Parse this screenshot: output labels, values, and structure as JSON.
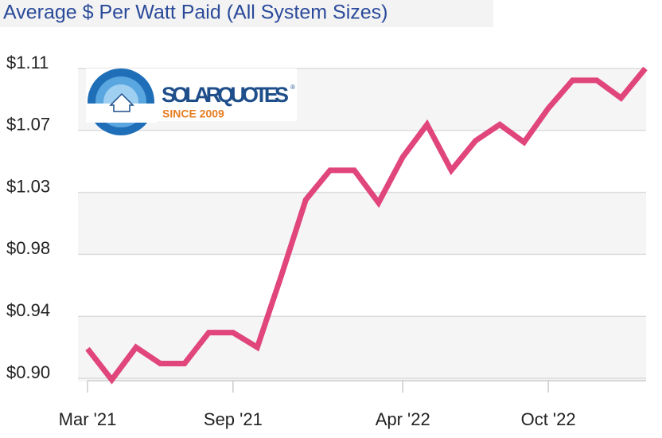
{
  "chart_data": {
    "type": "line",
    "title": "Average $ Per Watt Paid (All System Sizes)",
    "categories": [
      "Mar '21",
      null,
      null,
      null,
      null,
      null,
      "Sep '21",
      null,
      null,
      null,
      null,
      null,
      null,
      "Apr '22",
      null,
      null,
      null,
      null,
      null,
      "Oct '22",
      null,
      null,
      null,
      null
    ],
    "series": [
      {
        "name": "Average $ per watt",
        "color": "#e0457b",
        "values": [
          0.92,
          0.899,
          0.921,
          0.91,
          0.91,
          0.931,
          0.931,
          0.921,
          0.97,
          1.021,
          1.041,
          1.041,
          1.019,
          1.05,
          1.072,
          1.041,
          1.061,
          1.072,
          1.06,
          1.083,
          1.102,
          1.102,
          1.09,
          1.11
        ]
      }
    ],
    "ylim": [
      0.9,
      1.11
    ],
    "yticks": [
      {
        "value": 0.9,
        "label": "$0.90"
      },
      {
        "value": 0.942,
        "label": "$0.94"
      },
      {
        "value": 0.984,
        "label": "$0.98"
      },
      {
        "value": 1.026,
        "label": "$1.03"
      },
      {
        "value": 1.068,
        "label": "$1.07"
      },
      {
        "value": 1.11,
        "label": "$1.11"
      }
    ],
    "grid": true
  },
  "logo": {
    "name": "SOLARQUOTES",
    "mark": "®",
    "tagline": "SINCE 2009"
  }
}
